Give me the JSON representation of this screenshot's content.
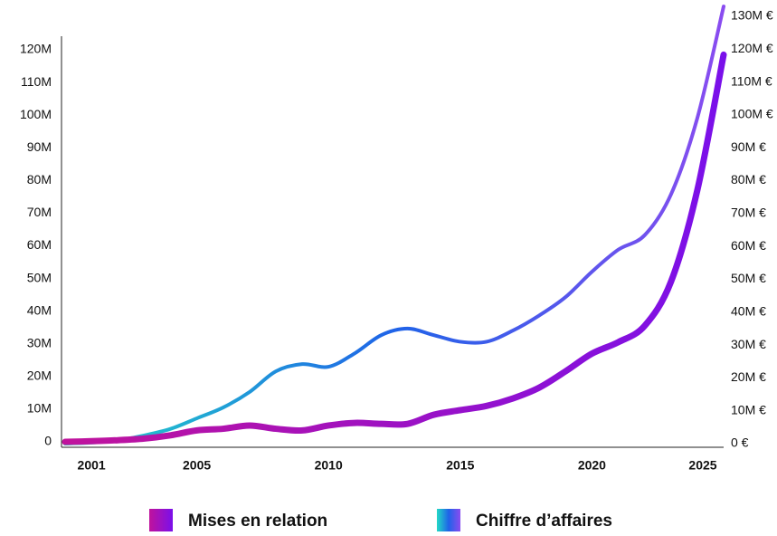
{
  "chart_data": {
    "type": "line",
    "x": [
      2000,
      2001,
      2002,
      2003,
      2004,
      2005,
      2006,
      2007,
      2008,
      2009,
      2010,
      2011,
      2012,
      2013,
      2014,
      2015,
      2016,
      2017,
      2018,
      2019,
      2020,
      2021,
      2022,
      2023,
      2024,
      2025
    ],
    "xlim": [
      2000,
      2025
    ],
    "xticks": [
      2001,
      2005,
      2010,
      2015,
      2020,
      2025
    ],
    "ylim": [
      0,
      120
    ],
    "yticks": [
      {
        "value": 0,
        "label": "0"
      },
      {
        "value": 10,
        "label": "10M"
      },
      {
        "value": 20,
        "label": "20M"
      },
      {
        "value": 30,
        "label": "30M"
      },
      {
        "value": 40,
        "label": "40M"
      },
      {
        "value": 50,
        "label": "50M"
      },
      {
        "value": 60,
        "label": "60M"
      },
      {
        "value": 70,
        "label": "70M"
      },
      {
        "value": 80,
        "label": "80M"
      },
      {
        "value": 90,
        "label": "90M"
      },
      {
        "value": 100,
        "label": "100M"
      },
      {
        "value": 110,
        "label": "110M"
      },
      {
        "value": 120,
        "label": "120M"
      }
    ],
    "y2lim": [
      0,
      130
    ],
    "y2ticks": [
      {
        "value": 0,
        "label": "0 €"
      },
      {
        "value": 10,
        "label": "10M €"
      },
      {
        "value": 20,
        "label": "20M €"
      },
      {
        "value": 30,
        "label": "30M €"
      },
      {
        "value": 40,
        "label": "40M €"
      },
      {
        "value": 50,
        "label": "50M €"
      },
      {
        "value": 60,
        "label": "60M €"
      },
      {
        "value": 70,
        "label": "70M €"
      },
      {
        "value": 80,
        "label": "80M €"
      },
      {
        "value": 90,
        "label": "90M €"
      },
      {
        "value": 100,
        "label": "100M €"
      },
      {
        "value": 110,
        "label": "110M €"
      },
      {
        "value": 120,
        "label": "120M €"
      },
      {
        "value": 130,
        "label": "130M €"
      }
    ],
    "series": [
      {
        "name": "Mises en relation",
        "colors": [
          "#c0139c",
          "#7a10ea"
        ],
        "width": 7,
        "values": [
          0,
          0.2,
          0.5,
          1,
          2,
          3.5,
          4,
          5,
          4,
          3.5,
          5,
          5.8,
          5.5,
          5.5,
          8.3,
          9.7,
          11,
          13.3,
          16.6,
          21.6,
          27,
          30.5,
          35.5,
          49,
          77,
          118.5
        ]
      },
      {
        "name": "Chiffre d’affaires",
        "axis": "y2",
        "colors": [
          "#22d9c6",
          "#1f63e8",
          "#8a4cf0"
        ],
        "width": 4,
        "values": [
          0,
          0.3,
          1,
          2.5,
          4.5,
          7.7,
          11,
          15.7,
          22,
          24.2,
          23.4,
          27.5,
          33,
          35,
          33,
          31,
          31,
          34.4,
          39,
          44.6,
          52.3,
          59,
          63.4,
          75.8,
          99,
          133
        ]
      }
    ]
  }
}
